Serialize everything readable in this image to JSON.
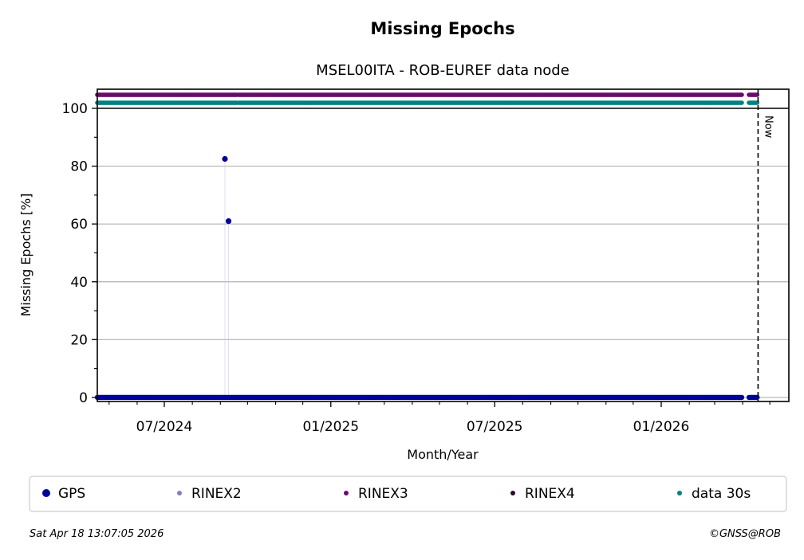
{
  "chart_data": {
    "type": "scatter",
    "title": "Missing Epochs",
    "subtitle": "MSEL00ITA - ROB-EUREF data node",
    "xlabel": "Month/Year",
    "ylabel": "Missing Epochs [%]",
    "xlim": [
      "2024-04-18",
      "2026-05-22"
    ],
    "ylim": [
      -1.4,
      100
    ],
    "x_ticks": [
      {
        "date": "2024-07-01",
        "label": "07/2024"
      },
      {
        "date": "2025-01-01",
        "label": "01/2025"
      },
      {
        "date": "2025-07-01",
        "label": "07/2025"
      },
      {
        "date": "2026-01-01",
        "label": "01/2026"
      }
    ],
    "y_ticks": [
      0,
      20,
      40,
      60,
      80,
      100
    ],
    "grid": "horizontal",
    "now": {
      "date": "2026-04-18",
      "label": "Now"
    },
    "series": [
      {
        "name": "GPS",
        "color": "#00009b",
        "segments": [
          {
            "start": "2024-04-18",
            "end": "2026-03-31",
            "value": 0
          },
          {
            "start": "2026-04-08",
            "end": "2026-04-17",
            "value": 0
          }
        ],
        "points": [
          {
            "date": "2024-09-06",
            "value": 82.5
          },
          {
            "date": "2024-09-10",
            "value": 61
          }
        ]
      },
      {
        "name": "RINEX2",
        "color": "#8080c0",
        "segments": [],
        "points": []
      },
      {
        "name": "RINEX3",
        "color": "#6a0a6a",
        "band": "availability",
        "segments": [
          {
            "start": "2024-04-18",
            "end": "2024-09-19"
          },
          {
            "start": "2024-09-21",
            "end": "2026-03-31"
          },
          {
            "start": "2026-04-08",
            "end": "2026-04-17"
          }
        ]
      },
      {
        "name": "RINEX4",
        "color": "#2a0a2a",
        "segments": [],
        "points": []
      },
      {
        "name": "data 30s",
        "color": "#008080",
        "band": "availability",
        "segments": [
          {
            "start": "2024-04-18",
            "end": "2024-09-19"
          },
          {
            "start": "2024-09-21",
            "end": "2026-03-31"
          },
          {
            "start": "2026-04-08",
            "end": "2026-04-17"
          }
        ]
      }
    ],
    "legend": "bottom"
  },
  "footer": {
    "timestamp": "Sat Apr 18 13:07:05 2026",
    "copyright": "©GNSS@ROB"
  }
}
